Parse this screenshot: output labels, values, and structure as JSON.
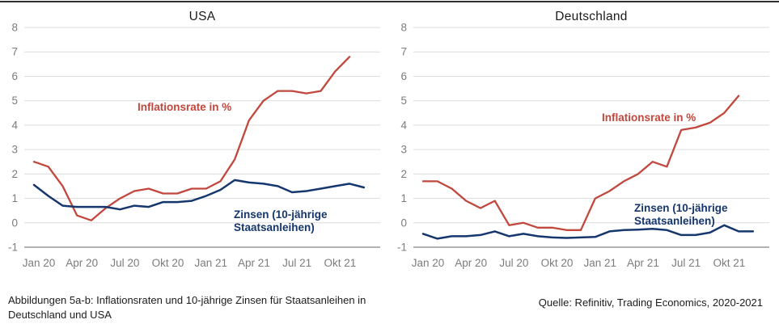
{
  "page": {
    "caption_left_line1": "Abbildungen 5a-b: Inflationsraten und 10-jährige Zinsen für Staatsanleihen in",
    "caption_left_line2": "Deutschland und USA",
    "caption_right": "Quelle: Refinitiv, Trading Economics, 2020-2021"
  },
  "colors": {
    "inflation_red": "#c2473d",
    "zinsen_navy": "#16366e",
    "gridline": "#dcdcdc",
    "axis_line": "#9a9a9a",
    "tick_text": "#7c7c7c",
    "title_text": "#1a1a1a"
  },
  "chart_data": [
    {
      "type": "line",
      "title": "USA",
      "categories": [
        "Jan 20",
        "Feb 20",
        "Mär 20",
        "Apr 20",
        "Mai 20",
        "Jun 20",
        "Jul 20",
        "Aug 20",
        "Sep 20",
        "Okt 20",
        "Nov 20",
        "Dez 20",
        "Jan 21",
        "Feb 21",
        "Mär 21",
        "Apr 21",
        "Mai 21",
        "Jun 21",
        "Jul 21",
        "Aug 21",
        "Sep 21",
        "Okt 21",
        "Nov 21",
        "Dez 21"
      ],
      "x_tick_labels": [
        "Jan 20",
        "Apr 20",
        "Jul 20",
        "Okt 20",
        "Jan 21",
        "Apr 21",
        "Jul 21",
        "Okt 21"
      ],
      "x_tick_indices": [
        0,
        3,
        6,
        9,
        12,
        15,
        18,
        21
      ],
      "ylim": [
        -1,
        8
      ],
      "yticks": [
        8,
        7,
        6,
        5,
        4,
        3,
        2,
        1,
        0,
        -1
      ],
      "grid": "horizontal",
      "legend_position": "inline-annotations",
      "series": [
        {
          "name": "Inflationsrate in %",
          "color": "#c2473d",
          "values": [
            2.5,
            2.3,
            1.5,
            0.3,
            0.1,
            0.6,
            1.0,
            1.3,
            1.4,
            1.2,
            1.2,
            1.4,
            1.4,
            1.7,
            2.6,
            4.2,
            5.0,
            5.4,
            5.4,
            5.3,
            5.4,
            6.2,
            6.8
          ]
        },
        {
          "name": "Zinsen (10-jährige Staatsanleihen)",
          "color": "#16366e",
          "values": [
            1.55,
            1.1,
            0.7,
            0.65,
            0.65,
            0.65,
            0.55,
            0.7,
            0.65,
            0.85,
            0.85,
            0.9,
            1.1,
            1.35,
            1.75,
            1.65,
            1.6,
            1.5,
            1.25,
            1.3,
            1.4,
            1.5,
            1.6,
            1.45
          ]
        }
      ]
    },
    {
      "type": "line",
      "title": "Deutschland",
      "categories": [
        "Jan 20",
        "Feb 20",
        "Mär 20",
        "Apr 20",
        "Mai 20",
        "Jun 20",
        "Jul 20",
        "Aug 20",
        "Sep 20",
        "Okt 20",
        "Nov 20",
        "Dez 20",
        "Jan 21",
        "Feb 21",
        "Mär 21",
        "Apr 21",
        "Mai 21",
        "Jun 21",
        "Jul 21",
        "Aug 21",
        "Sep 21",
        "Okt 21",
        "Nov 21",
        "Dez 21"
      ],
      "x_tick_labels": [
        "Jan 20",
        "Apr 20",
        "Jul 20",
        "Okt 20",
        "Jan 21",
        "Apr 21",
        "Jul 21",
        "Okt 21"
      ],
      "x_tick_indices": [
        0,
        3,
        6,
        9,
        12,
        15,
        18,
        21
      ],
      "ylim": [
        -1,
        8
      ],
      "yticks": [
        8,
        7,
        6,
        5,
        4,
        3,
        2,
        1,
        0,
        -1
      ],
      "grid": "horizontal",
      "legend_position": "inline-annotations",
      "series": [
        {
          "name": "Inflationsrate in %",
          "color": "#c2473d",
          "values": [
            1.7,
            1.7,
            1.4,
            0.9,
            0.6,
            0.9,
            -0.1,
            0.0,
            -0.2,
            -0.2,
            -0.3,
            -0.3,
            1.0,
            1.3,
            1.7,
            2.0,
            2.5,
            2.3,
            3.8,
            3.9,
            4.1,
            4.5,
            5.2
          ]
        },
        {
          "name": "Zinsen (10-jährige Staatsanleihen)",
          "color": "#16366e",
          "values": [
            -0.45,
            -0.65,
            -0.55,
            -0.55,
            -0.5,
            -0.35,
            -0.55,
            -0.45,
            -0.55,
            -0.6,
            -0.62,
            -0.6,
            -0.58,
            -0.35,
            -0.3,
            -0.28,
            -0.25,
            -0.3,
            -0.5,
            -0.5,
            -0.4,
            -0.1,
            -0.35,
            -0.35
          ]
        }
      ]
    }
  ]
}
